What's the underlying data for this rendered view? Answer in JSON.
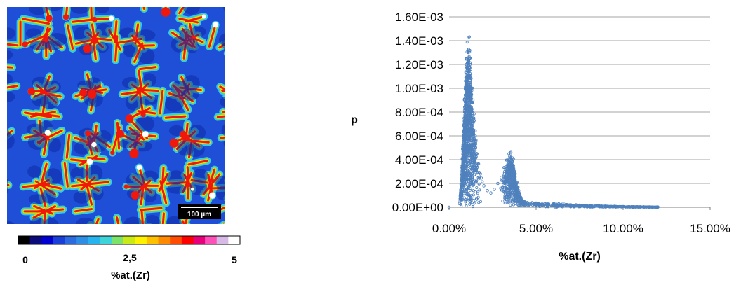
{
  "composition_map": {
    "scale_bar_label": "100 µm",
    "colorbar": {
      "colors": [
        "#000000",
        "#0a0a7a",
        "#0000d0",
        "#1a3fd9",
        "#2c6ae0",
        "#2e8ee6",
        "#27b3ee",
        "#3dd3d9",
        "#7be36a",
        "#c9ea16",
        "#fff200",
        "#ffc000",
        "#ff8a00",
        "#ff4c00",
        "#ff0000",
        "#e8007a",
        "#ff4fb8",
        "#d7b9e6",
        "#ffffff"
      ],
      "tick_labels": [
        "0",
        "2,5",
        "5"
      ],
      "label": "%at.(Zr)"
    },
    "palette": {
      "background": "#1f4fd6",
      "grain_dark": "#0c2aa8",
      "boundary_light": "#37c6ee",
      "boundary_green": "#6fe05a",
      "boundary_yellow": "#f2e600",
      "boundary_red": "#f0170c",
      "hotspot_white": "#ffffff"
    }
  },
  "chart_data": {
    "type": "scatter",
    "title": "",
    "xlabel": "%at.(Zr)",
    "ylabel": "p",
    "xlim": [
      0,
      0.15
    ],
    "ylim": [
      0,
      0.0016
    ],
    "x_tick_values": [
      0,
      0.05,
      0.1,
      0.15
    ],
    "x_tick_labels": [
      "0.00%",
      "5.00%",
      "10.00%",
      "15.00%"
    ],
    "y_tick_values": [
      0,
      0.0002,
      0.0004,
      0.0006,
      0.0008,
      0.001,
      0.0012,
      0.0014,
      0.0016
    ],
    "y_tick_labels": [
      "0.00E+00",
      "2.00E-04",
      "4.00E-04",
      "6.00E-04",
      "8.00E-04",
      "1.00E-03",
      "1.20E-03",
      "1.40E-03",
      "1.60E-03"
    ],
    "grid": "horizontal",
    "marker_color": "#4f81bd",
    "series": [
      {
        "x": [
          0.0,
          0.006,
          0.0075,
          0.009,
          0.01,
          0.011,
          0.012,
          0.013,
          0.014,
          0.015,
          0.016,
          0.018,
          0.02,
          0.022,
          0.024,
          0.026,
          0.028,
          0.03,
          0.032,
          0.034,
          0.035,
          0.036,
          0.037,
          0.038,
          0.04,
          0.042,
          0.045,
          0.05,
          0.055,
          0.06,
          0.065,
          0.07,
          0.075,
          0.08,
          0.085,
          0.09,
          0.095,
          0.1,
          0.105,
          0.11,
          0.115,
          0.12
        ],
        "y": [
          0.0,
          3e-05,
          0.00035,
          0.0009,
          0.0012,
          0.0013,
          0.0012,
          0.00098,
          0.00075,
          0.0006,
          0.00045,
          0.00028,
          0.00018,
          0.00014,
          0.00012,
          0.00015,
          0.0002,
          0.00025,
          0.0003,
          0.00038,
          0.0004,
          0.0004,
          0.00035,
          0.00028,
          0.00014,
          6e-05,
          4e-05,
          3.5e-05,
          3e-05,
          2.8e-05,
          2.5e-05,
          2e-05,
          1.8e-05,
          1.5e-05,
          1.2e-05,
          1e-05,
          8e-06,
          6e-06,
          5e-06,
          4e-06,
          3e-06,
          2e-06
        ]
      }
    ]
  }
}
